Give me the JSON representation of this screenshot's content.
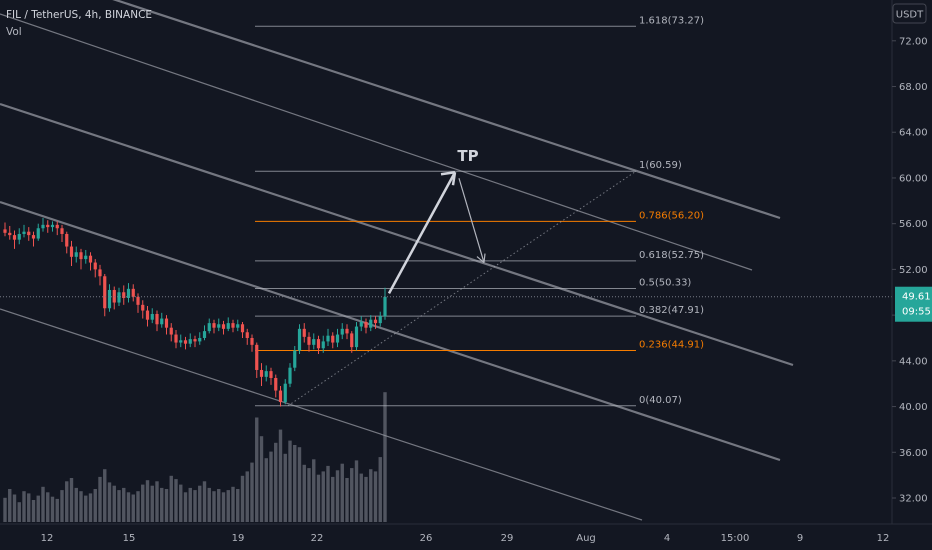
{
  "header": {
    "symbol": "FIL / TetherUS, 4h, BINANCE",
    "volume_label": "Vol"
  },
  "currency_button": "USDT",
  "price_badge": {
    "price": "49.61",
    "countdown": "09:55",
    "value": 49.61
  },
  "colors": {
    "background": "#131722",
    "up": "#26a69a",
    "down": "#ef5350",
    "volume": "#5d606b",
    "fib_gray": "#b2b5be",
    "fib_orange": "#f57c00",
    "channel": "#9598a1",
    "badge": "#26a69a"
  },
  "annotations": {
    "target_label": "TP"
  },
  "chart_data": {
    "type": "candlestick",
    "timeframe": "4h",
    "y_axis": {
      "ticks": [
        "32.00",
        "36.00",
        "40.00",
        "44.00",
        "48.00",
        "52.00",
        "56.00",
        "60.00",
        "64.00",
        "68.00",
        "72.00"
      ],
      "tick_values": [
        32,
        36,
        40,
        44,
        48,
        52,
        56,
        60,
        64,
        68,
        72
      ]
    },
    "x_axis": {
      "ticks": [
        "12",
        "15",
        "19",
        "22",
        "26",
        "29",
        "Aug",
        "4",
        "15:00",
        "9",
        "12"
      ]
    },
    "fibonacci": [
      {
        "ratio": "1.618",
        "price": "73.27",
        "label": "1.618(73.27)",
        "value": 73.27,
        "color": "gray"
      },
      {
        "ratio": "1",
        "price": "60.59",
        "label": "1(60.59)",
        "value": 60.59,
        "color": "gray"
      },
      {
        "ratio": "0.786",
        "price": "56.20",
        "label": "0.786(56.20)",
        "value": 56.2,
        "color": "orange"
      },
      {
        "ratio": "0.618",
        "price": "52.75",
        "label": "0.618(52.75)",
        "value": 52.75,
        "color": "gray"
      },
      {
        "ratio": "0.5",
        "price": "50.33",
        "label": "0.5(50.33)",
        "value": 50.33,
        "color": "gray"
      },
      {
        "ratio": "0.382",
        "price": "47.91",
        "label": "0.382(47.91)",
        "value": 47.91,
        "color": "gray"
      },
      {
        "ratio": "0.236",
        "price": "44.91",
        "label": "0.236(44.91)",
        "value": 44.91,
        "color": "orange"
      },
      {
        "ratio": "0",
        "price": "40.07",
        "label": "0(40.07)",
        "value": 40.07,
        "color": "gray"
      }
    ],
    "candles": [
      [
        55.5,
        55.2,
        56.1,
        54.9
      ],
      [
        55.2,
        55.0,
        55.8,
        54.6
      ],
      [
        55.0,
        54.6,
        55.4,
        53.8
      ],
      [
        54.6,
        55.1,
        55.6,
        54.2
      ],
      [
        55.1,
        55.3,
        55.9,
        54.8
      ],
      [
        55.3,
        55.0,
        55.7,
        54.5
      ],
      [
        55.0,
        54.7,
        55.3,
        54.0
      ],
      [
        54.7,
        55.6,
        56.0,
        54.5
      ],
      [
        55.6,
        55.9,
        56.5,
        55.3
      ],
      [
        55.9,
        55.7,
        56.3,
        55.2
      ],
      [
        55.7,
        55.9,
        56.2,
        55.3
      ],
      [
        55.9,
        55.6,
        56.2,
        55.0
      ],
      [
        55.6,
        55.1,
        55.9,
        54.4
      ],
      [
        55.1,
        54.0,
        55.3,
        53.4
      ],
      [
        54.0,
        53.1,
        54.5,
        52.3
      ],
      [
        53.1,
        53.5,
        54.0,
        52.6
      ],
      [
        53.5,
        52.9,
        53.8,
        52.0
      ],
      [
        52.9,
        53.2,
        53.7,
        52.5
      ],
      [
        53.2,
        52.6,
        53.5,
        51.9
      ],
      [
        52.6,
        52.0,
        52.9,
        51.3
      ],
      [
        52.0,
        51.4,
        52.4,
        50.6
      ],
      [
        51.4,
        48.6,
        51.6,
        47.9
      ],
      [
        48.6,
        50.2,
        50.7,
        48.3
      ],
      [
        50.2,
        49.1,
        50.5,
        48.5
      ],
      [
        49.1,
        50.0,
        50.4,
        48.8
      ],
      [
        50.0,
        49.5,
        50.6,
        48.9
      ],
      [
        49.5,
        50.3,
        50.8,
        49.1
      ],
      [
        50.3,
        49.6,
        50.7,
        49.2
      ],
      [
        49.6,
        48.9,
        49.9,
        48.2
      ],
      [
        48.9,
        48.4,
        49.3,
        47.7
      ],
      [
        48.4,
        47.6,
        48.8,
        47.0
      ],
      [
        47.6,
        48.1,
        48.6,
        47.3
      ],
      [
        48.1,
        47.2,
        48.4,
        46.6
      ],
      [
        47.2,
        47.7,
        48.2,
        46.9
      ],
      [
        47.7,
        46.9,
        48.0,
        46.3
      ],
      [
        46.9,
        46.3,
        47.3,
        45.7
      ],
      [
        46.3,
        45.6,
        46.7,
        45.1
      ],
      [
        45.6,
        45.8,
        46.3,
        45.2
      ],
      [
        45.8,
        45.5,
        46.1,
        45.0
      ],
      [
        45.5,
        45.9,
        46.4,
        45.2
      ],
      [
        45.9,
        45.7,
        46.2,
        45.2
      ],
      [
        45.7,
        46.0,
        46.5,
        45.4
      ],
      [
        46.0,
        46.6,
        47.1,
        45.8
      ],
      [
        46.6,
        47.3,
        47.7,
        46.4
      ],
      [
        47.3,
        46.9,
        47.6,
        46.4
      ],
      [
        46.9,
        47.2,
        47.7,
        46.6
      ],
      [
        47.2,
        46.8,
        47.5,
        46.3
      ],
      [
        46.8,
        47.3,
        47.8,
        46.6
      ],
      [
        47.3,
        46.9,
        47.6,
        46.5
      ],
      [
        46.9,
        47.2,
        47.6,
        46.6
      ],
      [
        47.2,
        46.5,
        47.4,
        46.0
      ],
      [
        46.5,
        46.0,
        46.8,
        45.4
      ],
      [
        46.0,
        45.4,
        46.3,
        44.8
      ],
      [
        45.4,
        43.2,
        45.6,
        42.5
      ],
      [
        43.2,
        42.6,
        43.8,
        41.8
      ],
      [
        42.6,
        43.1,
        43.6,
        42.2
      ],
      [
        43.1,
        42.5,
        43.4,
        41.9
      ],
      [
        42.5,
        41.4,
        42.8,
        40.8
      ],
      [
        41.4,
        40.4,
        41.8,
        40.0
      ],
      [
        40.4,
        42.0,
        42.4,
        40.2
      ],
      [
        42.0,
        43.4,
        43.8,
        41.7
      ],
      [
        43.4,
        44.9,
        45.3,
        43.1
      ],
      [
        44.9,
        46.8,
        47.2,
        44.6
      ],
      [
        46.8,
        46.1,
        47.3,
        45.6
      ],
      [
        46.1,
        45.4,
        46.5,
        44.8
      ],
      [
        45.4,
        45.9,
        46.4,
        45.0
      ],
      [
        45.9,
        45.1,
        46.2,
        44.6
      ],
      [
        45.1,
        45.7,
        46.2,
        44.7
      ],
      [
        45.7,
        46.2,
        46.8,
        45.3
      ],
      [
        46.2,
        45.6,
        46.5,
        45.1
      ],
      [
        45.6,
        46.3,
        46.8,
        45.2
      ],
      [
        46.3,
        46.8,
        47.3,
        45.9
      ],
      [
        46.8,
        46.4,
        47.2,
        45.9
      ],
      [
        46.4,
        45.2,
        46.6,
        44.7
      ],
      [
        45.2,
        47.0,
        47.4,
        44.9
      ],
      [
        47.0,
        47.4,
        47.9,
        46.6
      ],
      [
        47.4,
        46.9,
        47.7,
        46.4
      ],
      [
        46.9,
        47.6,
        48.0,
        46.6
      ],
      [
        47.6,
        47.3,
        47.9,
        46.8
      ],
      [
        47.3,
        47.9,
        48.3,
        47.0
      ],
      [
        47.9,
        49.6,
        50.4,
        47.6
      ]
    ],
    "volume": [
      22,
      30,
      25,
      18,
      28,
      26,
      20,
      24,
      32,
      27,
      23,
      21,
      29,
      37,
      40,
      31,
      28,
      24,
      26,
      30,
      41,
      48,
      36,
      33,
      29,
      31,
      27,
      25,
      28,
      34,
      38,
      33,
      37,
      31,
      30,
      42,
      39,
      34,
      27,
      31,
      29,
      33,
      37,
      31,
      28,
      30,
      27,
      29,
      32,
      30,
      42,
      46,
      54,
      95,
      78,
      58,
      64,
      72,
      84,
      62,
      74,
      70,
      68,
      52,
      49,
      57,
      43,
      46,
      51,
      41,
      47,
      53,
      40,
      49,
      56,
      44,
      41,
      48,
      46,
      59,
      118
    ]
  }
}
